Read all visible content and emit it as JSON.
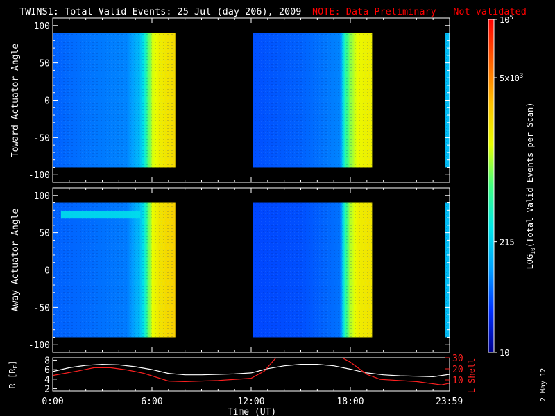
{
  "title": "TWINS1: Total Valid Events: 25 Jul (day 206), 2009",
  "note": "NOTE: Data Preliminary - Not validated",
  "date_stamp": "2 May 12",
  "colors": {
    "background": "#000000",
    "axes": "#ffffff",
    "note": "#ff0000",
    "r_line": "#ffffff",
    "lshell_line": "#ff2020",
    "colormap": [
      "#00008c",
      "#0030ff",
      "#00a0ff",
      "#00e8e8",
      "#40ff80",
      "#e8ff00",
      "#ffc000",
      "#ff6000",
      "#ff0000"
    ]
  },
  "chart_data": [
    {
      "type": "heatmap",
      "name": "toward",
      "ylabel": "Toward Actuator Angle",
      "ylim": [
        -110,
        110
      ],
      "yticks": [
        100,
        50,
        0,
        -50,
        -100
      ],
      "ytick_labels": [
        "100",
        "50",
        "0",
        "-50",
        "-100"
      ],
      "xlim_hours": [
        0,
        24
      ],
      "angle_range": [
        -90,
        90
      ],
      "data_intervals_hours": [
        [
          0,
          7.4
        ],
        [
          12.1,
          19.3
        ],
        [
          23.75,
          24
        ]
      ],
      "description_levels": "color level 0-1 along time (approx)",
      "profile": [
        [
          0.0,
          0.18
        ],
        [
          2.0,
          0.2
        ],
        [
          4.5,
          0.22
        ],
        [
          5.3,
          0.3
        ],
        [
          5.6,
          0.42
        ],
        [
          6.0,
          0.6
        ],
        [
          6.5,
          0.66
        ],
        [
          7.0,
          0.68
        ],
        [
          7.4,
          0.7
        ],
        [
          12.1,
          0.16
        ],
        [
          15.0,
          0.18
        ],
        [
          17.4,
          0.22
        ],
        [
          17.7,
          0.45
        ],
        [
          18.0,
          0.55
        ],
        [
          18.5,
          0.64
        ],
        [
          19.3,
          0.66
        ],
        [
          23.75,
          0.3
        ],
        [
          24.0,
          0.3
        ]
      ]
    },
    {
      "type": "heatmap",
      "name": "away",
      "ylabel": "Away Actuator Angle",
      "ylim": [
        -110,
        110
      ],
      "yticks": [
        100,
        50,
        0,
        -50,
        -100
      ],
      "ytick_labels": [
        "100",
        "50",
        "0",
        "-50",
        "-100"
      ],
      "xlim_hours": [
        0,
        24
      ],
      "angle_range": [
        -90,
        90
      ],
      "data_intervals_hours": [
        [
          0,
          7.4
        ],
        [
          12.1,
          19.3
        ],
        [
          23.75,
          24
        ]
      ],
      "band": {
        "angle_center": 74,
        "angle_width": 10,
        "hours": [
          0.5,
          5.3
        ],
        "level": 0.36
      },
      "profile": [
        [
          0.0,
          0.18
        ],
        [
          2.0,
          0.19
        ],
        [
          4.5,
          0.21
        ],
        [
          5.3,
          0.3
        ],
        [
          5.6,
          0.42
        ],
        [
          6.0,
          0.62
        ],
        [
          6.5,
          0.68
        ],
        [
          7.0,
          0.7
        ],
        [
          7.4,
          0.72
        ],
        [
          12.1,
          0.15
        ],
        [
          15.0,
          0.16
        ],
        [
          17.4,
          0.2
        ],
        [
          17.7,
          0.45
        ],
        [
          18.0,
          0.58
        ],
        [
          18.5,
          0.66
        ],
        [
          19.3,
          0.68
        ],
        [
          23.75,
          0.3
        ],
        [
          24.0,
          0.3
        ]
      ]
    },
    {
      "type": "line",
      "name": "orbit",
      "ylabel_left": "R [R",
      "ylabel_left_sub": "E",
      "ylabel_left_close": "]",
      "ylabel_right": "L Shell",
      "ylim_left": [
        1.5,
        8.5
      ],
      "yticks_left": [
        2,
        4,
        6,
        8
      ],
      "ytick_labels_left": [
        "2",
        "4",
        "6",
        "8"
      ],
      "ylim_right": [
        0,
        30
      ],
      "yticks_right": [
        10,
        20,
        30
      ],
      "ytick_labels_right": [
        "10",
        "20",
        "30"
      ],
      "xlabel": "Time (UT)",
      "xticks_hours": [
        0,
        6,
        12,
        18,
        23.983
      ],
      "xtick_labels": [
        "0:00",
        "6:00",
        "12:00",
        "18:00",
        "23:59"
      ],
      "series": [
        {
          "axis": "left",
          "values_xy": [
            [
              0,
              5.6
            ],
            [
              1,
              6.4
            ],
            [
              2,
              6.9
            ],
            [
              3,
              7.1
            ],
            [
              4,
              7.0
            ],
            [
              5,
              6.6
            ],
            [
              6,
              6.0
            ],
            [
              7,
              5.2
            ],
            [
              8,
              4.9
            ],
            [
              9,
              4.9
            ],
            [
              10,
              5.0
            ],
            [
              11,
              5.1
            ],
            [
              12,
              5.3
            ],
            [
              13,
              6.2
            ],
            [
              14,
              6.8
            ],
            [
              15,
              7.1
            ],
            [
              16,
              7.1
            ],
            [
              17,
              6.8
            ],
            [
              18,
              6.1
            ],
            [
              19,
              5.3
            ],
            [
              20,
              4.9
            ],
            [
              21,
              4.7
            ],
            [
              22,
              4.6
            ],
            [
              23,
              4.5
            ],
            [
              24,
              5.0
            ]
          ]
        },
        {
          "axis": "right",
          "values_xy": [
            [
              0,
              14
            ],
            [
              1.5,
              18
            ],
            [
              2.5,
              21
            ],
            [
              3.5,
              21
            ],
            [
              4.5,
              19
            ],
            [
              5.5,
              16
            ],
            [
              7,
              9
            ],
            [
              8,
              8.5
            ],
            [
              10,
              9.5
            ],
            [
              12,
              11.5
            ],
            [
              12.8,
              18
            ],
            [
              13.5,
              30
            ],
            [
              17.5,
              30
            ],
            [
              18,
              26
            ],
            [
              19,
              15
            ],
            [
              19.8,
              10.5
            ],
            [
              22,
              8.5
            ],
            [
              23.5,
              5.5
            ],
            [
              24,
              7
            ]
          ]
        }
      ]
    },
    {
      "type": "colorbar",
      "name": "colorbar",
      "label_prefix": "LOG",
      "label_sub": "10",
      "label_suffix": "(Total Valid Events per Scan)",
      "ticks": [
        {
          "level": 0.0,
          "text": "10",
          "sup": ""
        },
        {
          "level": 0.332,
          "text": "215",
          "sup": ""
        },
        {
          "level": 0.825,
          "text": "5x10",
          "sup": "3"
        },
        {
          "level": 1.0,
          "text": "10",
          "sup": "5"
        }
      ]
    }
  ]
}
